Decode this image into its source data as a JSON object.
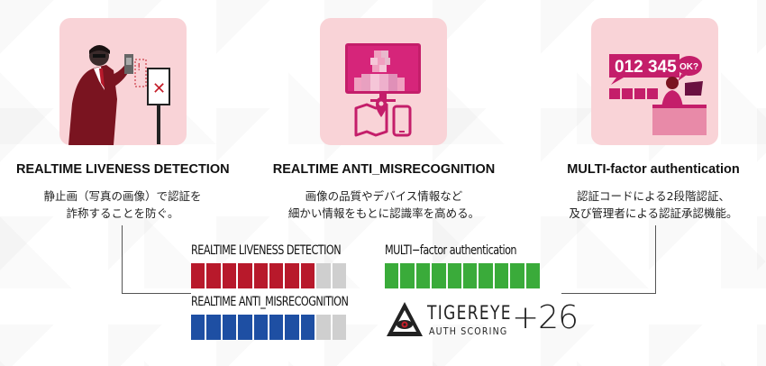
{
  "features": [
    {
      "title": "REALTIME LIVENESS DETECTION",
      "desc_line1": "静止画（写真の画像）で認証を",
      "desc_line2": "詐称することを防ぐ。"
    },
    {
      "title": "REALTIME ANTI_MISRECOGNITION",
      "desc_line1": "画像の品質やデバイス情報など",
      "desc_line2": "細かい情報をもとに認識率を高める。"
    },
    {
      "title": "MULTI-factor authentication",
      "desc_line1": "認証コードによる2段階認証、",
      "desc_line2": "及び管理者による認証承認機能。"
    }
  ],
  "illustrations": {
    "code_text": "012 345",
    "ok_text": "OK?"
  },
  "scores": {
    "liveness": {
      "label": "REALTIME LIVENESS DETECTION",
      "filled": 8,
      "total": 10,
      "color": "#b8192b"
    },
    "misrec": {
      "label": "REALTIME ANTI_MISRECOGNITION",
      "filled": 8,
      "total": 10,
      "color": "#1e4fa3"
    },
    "multi": {
      "label": "MULTI−factor authentication",
      "filled": 10,
      "total": 10,
      "color": "#3aab3a"
    }
  },
  "logo": {
    "main": "TIGEREYE",
    "sub": "AUTH SCORING"
  },
  "total_score": "+26"
}
